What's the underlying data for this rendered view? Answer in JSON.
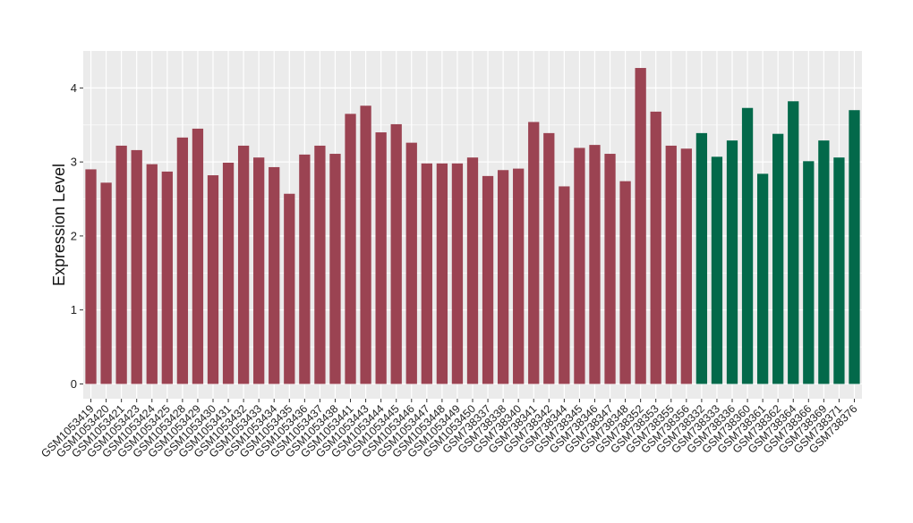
{
  "chart_data": {
    "type": "bar",
    "title": "",
    "xlabel": "",
    "ylabel": "Expression Level",
    "ylim": [
      -0.2,
      4.5
    ],
    "yticks": [
      0,
      1,
      2,
      3,
      4
    ],
    "grid": true,
    "legend": "none",
    "colors": {
      "group_1": "#9b4352",
      "group_2": "#03694a",
      "panel": "#ebebeb",
      "grid": "#ffffff"
    },
    "categories": [
      "GSM1053419",
      "GSM1053420",
      "GSM1053421",
      "GSM1053423",
      "GSM1053424",
      "GSM1053425",
      "GSM1053428",
      "GSM1053429",
      "GSM1053430",
      "GSM1053431",
      "GSM1053432",
      "GSM1053433",
      "GSM1053434",
      "GSM1053435",
      "GSM1053436",
      "GSM1053437",
      "GSM1053438",
      "GSM1053441",
      "GSM1053443",
      "GSM1053444",
      "GSM1053445",
      "GSM1053446",
      "GSM1053447",
      "GSM1053448",
      "GSM1053449",
      "GSM1053450",
      "GSM738337",
      "GSM738338",
      "GSM738340",
      "GSM738341",
      "GSM738342",
      "GSM738344",
      "GSM738345",
      "GSM738346",
      "GSM738347",
      "GSM738348",
      "GSM738352",
      "GSM738353",
      "GSM738355",
      "GSM738356",
      "GSM738332",
      "GSM738333",
      "GSM738336",
      "GSM738360",
      "GSM738361",
      "GSM738362",
      "GSM738364",
      "GSM738366",
      "GSM738369",
      "GSM738371",
      "GSM738376"
    ],
    "values": [
      2.9,
      2.72,
      3.22,
      3.16,
      2.97,
      2.87,
      3.33,
      3.45,
      2.82,
      2.99,
      3.22,
      3.06,
      2.93,
      2.57,
      3.1,
      3.22,
      3.11,
      3.65,
      3.76,
      3.4,
      3.51,
      3.26,
      2.98,
      2.98,
      2.98,
      3.06,
      2.81,
      2.89,
      2.91,
      3.54,
      3.39,
      2.67,
      3.19,
      3.23,
      3.11,
      2.74,
      4.27,
      3.68,
      3.22,
      3.18,
      3.39,
      3.07,
      3.29,
      3.73,
      2.84,
      3.38,
      3.82,
      3.01,
      3.29,
      3.06,
      3.7
    ],
    "groups": [
      1,
      1,
      1,
      1,
      1,
      1,
      1,
      1,
      1,
      1,
      1,
      1,
      1,
      1,
      1,
      1,
      1,
      1,
      1,
      1,
      1,
      1,
      1,
      1,
      1,
      1,
      1,
      1,
      1,
      1,
      1,
      1,
      1,
      1,
      1,
      1,
      1,
      1,
      1,
      1,
      2,
      2,
      2,
      2,
      2,
      2,
      2,
      2,
      2,
      2,
      2
    ]
  }
}
